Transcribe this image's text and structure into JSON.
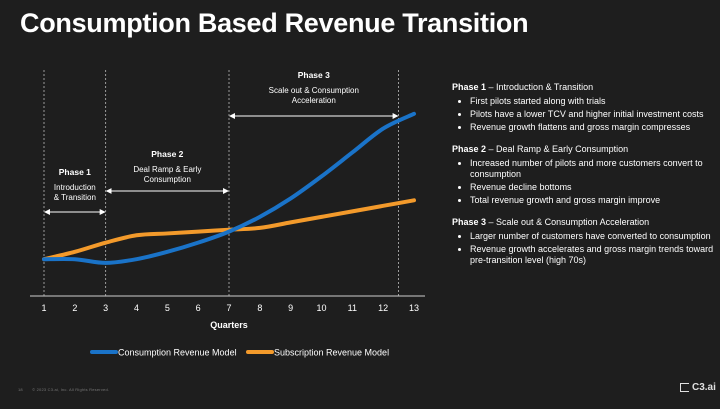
{
  "page": {
    "title": "Consumption Based Revenue Transition",
    "footer": {
      "page_number": "18",
      "copyright": "© 2023 C3.ai, Inc. All Rights Reserved.",
      "logo_text": "C3.ai"
    }
  },
  "side_panel": {
    "phases": [
      {
        "title": "Phase 1",
        "subtitle": " – Introduction & Transition",
        "bullets": [
          "First pilots started along with trials",
          "Pilots have a lower TCV and higher initial investment costs",
          "Revenue growth flattens and gross margin compresses"
        ]
      },
      {
        "title": "Phase 2",
        "subtitle": " – Deal Ramp & Early Consumption",
        "bullets": [
          "Increased number of pilots and more customers convert to consumption",
          "Revenue decline bottoms",
          "Total revenue growth and gross margin improve"
        ]
      },
      {
        "title": "Phase 3",
        "subtitle": " – Scale out & Consumption Acceleration",
        "bullets": [
          "Larger number of customers have converted to consumption",
          "Revenue growth accelerates and gross margin trends toward pre-transition level (high 70s)"
        ]
      }
    ]
  },
  "chart_data": {
    "type": "line",
    "title": "",
    "xlabel": "Quarters",
    "ylabel": "",
    "x": [
      1,
      2,
      3,
      4,
      5,
      6,
      7,
      8,
      9,
      10,
      11,
      12,
      13
    ],
    "xlim": [
      1,
      13
    ],
    "ylim": [
      0,
      100
    ],
    "grid": false,
    "legend": "bottom",
    "series": [
      {
        "name": "Consumption Revenue Model",
        "color": "#1a73c8",
        "x": [
          1,
          2,
          3,
          4,
          5,
          6,
          7,
          8,
          9,
          10,
          11,
          12,
          13
        ],
        "values": [
          20,
          20,
          18,
          20,
          24,
          29,
          35,
          43,
          53,
          65,
          78,
          91,
          99
        ]
      },
      {
        "name": "Subscription Revenue Model",
        "color": "#f39a2b",
        "x": [
          1,
          2,
          3,
          4,
          5,
          6,
          7,
          8,
          9,
          10,
          11,
          12,
          13
        ],
        "values": [
          20,
          24,
          29,
          33,
          34,
          35,
          36,
          37,
          40,
          43,
          46,
          49,
          52
        ]
      }
    ],
    "phase_markers": [
      {
        "label": "Phase 1",
        "desc": [
          "Introduction",
          "& Transition"
        ],
        "from": 1,
        "to": 3
      },
      {
        "label": "Phase 2",
        "desc": [
          "Deal Ramp & Early",
          "Consumption"
        ],
        "from": 3,
        "to": 7
      },
      {
        "label": "Phase 3",
        "desc": [
          "Scale out & Consumption",
          "Acceleration"
        ],
        "from": 7,
        "to": 12.5
      }
    ]
  }
}
